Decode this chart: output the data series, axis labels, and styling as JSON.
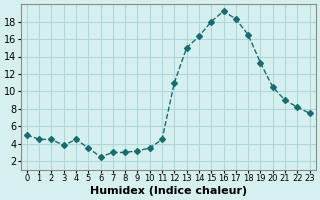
{
  "x": [
    0,
    1,
    2,
    3,
    4,
    5,
    6,
    7,
    8,
    9,
    10,
    11,
    12,
    13,
    14,
    15,
    16,
    17,
    18,
    19,
    20,
    21,
    22,
    23
  ],
  "y": [
    5.0,
    4.5,
    4.5,
    3.8,
    4.5,
    3.5,
    2.5,
    3.0,
    3.0,
    3.2,
    3.5,
    4.5,
    11.0,
    15.0,
    16.3,
    18.0,
    19.2,
    18.3,
    16.5,
    13.3,
    10.5,
    9.0,
    8.2,
    7.5
  ],
  "line_color": "#1a6b6b",
  "marker": "D",
  "marker_size": 3,
  "bg_color": "#d6f0f0",
  "grid_color": "#b0d8d8",
  "xlabel": "Humidex (Indice chaleur)",
  "ylim": [
    1,
    20
  ],
  "xlim": [
    -0.5,
    23.5
  ],
  "yticks": [
    2,
    4,
    6,
    8,
    10,
    12,
    14,
    16,
    18
  ],
  "xticks": [
    0,
    1,
    2,
    3,
    4,
    5,
    6,
    7,
    8,
    9,
    10,
    11,
    12,
    13,
    14,
    15,
    16,
    17,
    18,
    19,
    20,
    21,
    22,
    23
  ],
  "xlabel_fontsize": 8,
  "tick_fontsize": 7
}
